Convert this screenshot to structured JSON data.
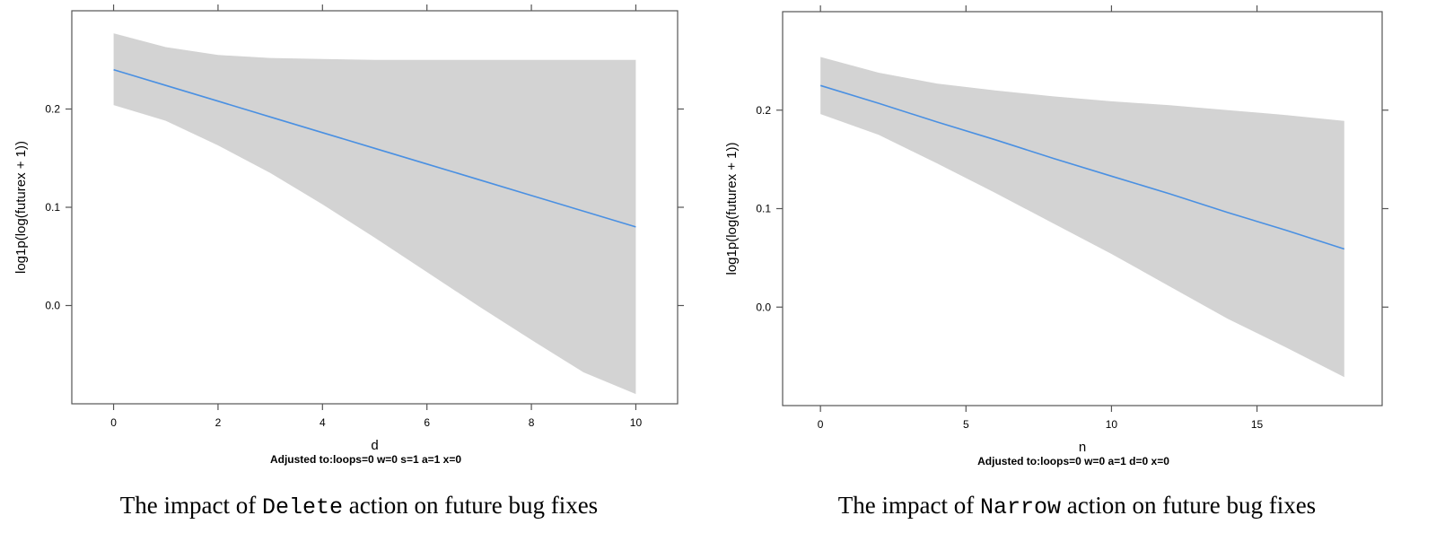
{
  "chart_data": [
    {
      "type": "line",
      "title": "",
      "xlabel": "d",
      "ylabel": "log1p(log(futurex + 1))",
      "subtitle": "Adjusted to:loops=0 w=0 s=1 a=1 x=0",
      "xlim": [
        -0.8,
        10.8
      ],
      "ylim": [
        -0.1,
        0.3
      ],
      "xticks": [
        0,
        2,
        4,
        6,
        8,
        10
      ],
      "yticks": [
        0.0,
        0.1,
        0.2
      ],
      "ytick_labels": [
        "0.0",
        "0.1",
        "0.2"
      ],
      "grid": false,
      "line_color": "#4a90e2",
      "band_color": "#d3d3d3",
      "x": [
        0,
        1,
        2,
        3,
        4,
        5,
        6,
        7,
        8,
        9,
        10
      ],
      "series": [
        {
          "fit": [
            0.24,
            0.224,
            0.208,
            0.192,
            0.176,
            0.16,
            0.144,
            0.128,
            0.112,
            0.096,
            0.08
          ],
          "lower": [
            0.204,
            0.188,
            0.163,
            0.135,
            0.103,
            0.069,
            0.034,
            -0.001,
            -0.035,
            -0.068,
            -0.09
          ],
          "upper": [
            0.277,
            0.263,
            0.255,
            0.252,
            0.251,
            0.25,
            0.25,
            0.25,
            0.25,
            0.25,
            0.25
          ]
        }
      ],
      "caption": {
        "prefix": "The impact of ",
        "code": "Delete",
        "suffix": " action on future bug fixes"
      }
    },
    {
      "type": "line",
      "title": "",
      "xlabel": "n",
      "ylabel": "log1p(log(futurex + 1))",
      "subtitle": "Adjusted to:loops=0 w=0 a=1 d=0 x=0",
      "xlim": [
        -1.3,
        19.3
      ],
      "ylim": [
        -0.1,
        0.3
      ],
      "xticks": [
        0,
        5,
        10,
        15
      ],
      "yticks": [
        0.0,
        0.1,
        0.2
      ],
      "ytick_labels": [
        "0.0",
        "0.1",
        "0.2"
      ],
      "grid": false,
      "line_color": "#4a90e2",
      "band_color": "#d3d3d3",
      "x": [
        0,
        2,
        4,
        6,
        8,
        10,
        12,
        14,
        16,
        18
      ],
      "series": [
        {
          "fit": [
            0.225,
            0.207,
            0.188,
            0.17,
            0.151,
            0.133,
            0.115,
            0.096,
            0.078,
            0.059
          ],
          "lower": [
            0.196,
            0.175,
            0.146,
            0.116,
            0.085,
            0.054,
            0.021,
            -0.012,
            -0.041,
            -0.071
          ],
          "upper": [
            0.254,
            0.238,
            0.227,
            0.22,
            0.214,
            0.209,
            0.205,
            0.2,
            0.195,
            0.189
          ]
        }
      ],
      "caption": {
        "prefix": "The impact of ",
        "code": "Narrow",
        "suffix": " action on future bug fixes"
      }
    }
  ]
}
